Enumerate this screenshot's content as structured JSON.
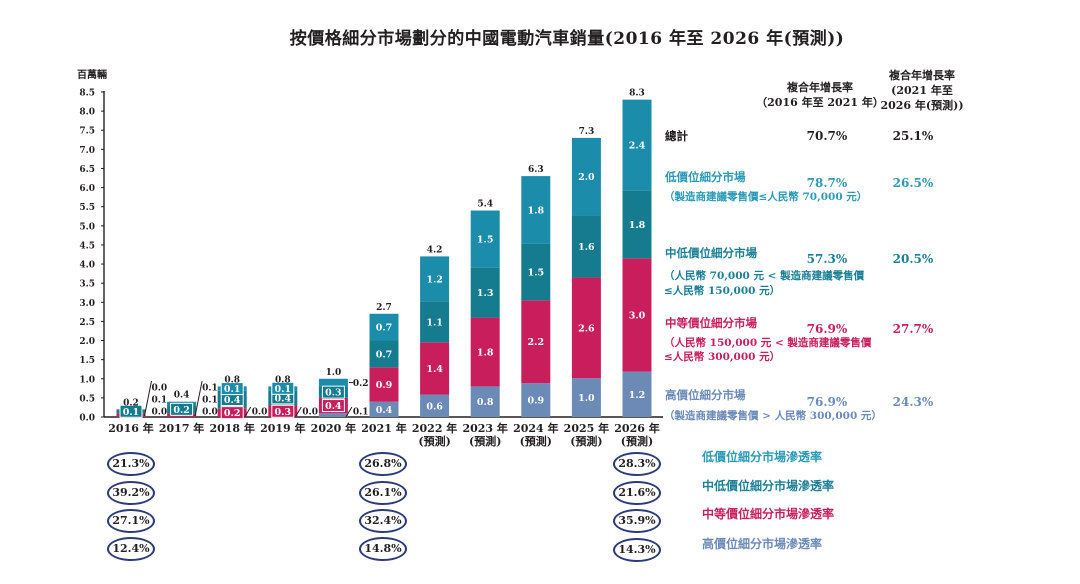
{
  "chart_data": {
    "type": "bar",
    "stacked": true,
    "title": "按價格細分市場劃分的中國電動汽車銷量(2016 年至 2026 年(預測))",
    "xlabel": "",
    "ylabel": "百萬輛",
    "ylim": [
      0,
      8.5
    ],
    "grid": false,
    "yticks": [
      0,
      0.5,
      1,
      1.5,
      2,
      2.5,
      3,
      3.5,
      4,
      4.5,
      5,
      5.5,
      6,
      6.5,
      7,
      7.5,
      8,
      8.5
    ],
    "ytick_labels": [
      "0.0",
      "0.5",
      "1.0",
      "1.5",
      "2.0",
      "2.5",
      "3.0",
      "3.5",
      "4.0",
      "4.5",
      "5.0",
      "5.5",
      "6.0",
      "6.5",
      "7.0",
      "7.5",
      "8.0",
      "8.5"
    ],
    "categories": [
      "2016 年",
      "2017 年",
      "2018 年",
      "2019 年",
      "2020 年",
      "2021 年",
      "2022 年(預測)",
      "2023 年(預測)",
      "2024 年(預測)",
      "2025 年(預測)",
      "2026 年(預測)"
    ],
    "category_lines": [
      [
        "2016 年"
      ],
      [
        "2017 年"
      ],
      [
        "2018 年"
      ],
      [
        "2019 年"
      ],
      [
        "2020 年"
      ],
      [
        "2021 年"
      ],
      [
        "2022 年",
        "(預測)"
      ],
      [
        "2023 年",
        "(預測)"
      ],
      [
        "2024 年",
        "(預測)"
      ],
      [
        "2025 年",
        "(預測)"
      ],
      [
        "2026 年",
        "(預測)"
      ]
    ],
    "series": [
      {
        "name": "高價位細分市場",
        "color": "#6b8ab5",
        "values": [
          0.0,
          0.0,
          0.0,
          0.0,
          0.1,
          0.4,
          0.6,
          0.8,
          0.9,
          1.0,
          1.2
        ],
        "labels": [
          "0.0",
          "0.0",
          "0.0",
          "0.0",
          "0.1",
          "0.4",
          "0.6",
          "0.8",
          "0.9",
          "1.0",
          "1.2"
        ],
        "label_placement": [
          "callout",
          "callout",
          "callout",
          "callout",
          "callout",
          "inside",
          "inside",
          "inside",
          "inside",
          "inside",
          "inside"
        ]
      },
      {
        "name": "中等價位細分市場",
        "color": "#c81f5c",
        "values": [
          0.1,
          0.1,
          0.2,
          0.3,
          0.4,
          0.9,
          1.4,
          1.8,
          2.2,
          2.6,
          3.0
        ],
        "labels": [
          "0.1",
          "0.1",
          "0.2",
          "0.3",
          "0.4",
          "0.9",
          "1.4",
          "1.8",
          "2.2",
          "2.6",
          "3.0"
        ],
        "label_placement": [
          "callout",
          "callout",
          "inside",
          "inside",
          "inside",
          "inside",
          "inside",
          "inside",
          "inside",
          "inside",
          "inside"
        ]
      },
      {
        "name": "中低價位細分市場",
        "color": "#157c90",
        "values": [
          0.1,
          0.2,
          0.4,
          0.4,
          0.3,
          0.7,
          1.1,
          1.3,
          1.5,
          1.6,
          1.8
        ],
        "labels": [
          "0.1",
          "0.2",
          "0.4",
          "0.4",
          "0.3",
          "0.7",
          "1.1",
          "1.3",
          "1.5",
          "1.6",
          "1.8"
        ],
        "label_placement": [
          "inside",
          "inside",
          "inside",
          "inside",
          "inside",
          "inside",
          "inside",
          "inside",
          "inside",
          "inside",
          "inside"
        ]
      },
      {
        "name": "低價位細分市場",
        "color": "#1b8ca9",
        "values": [
          0.0,
          0.1,
          0.1,
          0.1,
          0.2,
          0.7,
          1.2,
          1.5,
          1.8,
          2.0,
          2.4
        ],
        "labels": [
          "0.0",
          "0.1",
          "0.1",
          "0.1",
          "0.2",
          "0.7",
          "1.2",
          "1.5",
          "1.8",
          "2.0",
          "2.4"
        ],
        "label_placement": [
          "callout",
          "callout",
          "inside",
          "inside",
          "callout",
          "inside",
          "inside",
          "inside",
          "inside",
          "inside",
          "inside"
        ]
      }
    ],
    "totals": [
      0.2,
      0.4,
      0.8,
      0.8,
      1.0,
      2.7,
      4.2,
      5.4,
      6.3,
      7.3,
      8.3
    ],
    "total_labels": [
      "0.2",
      "0.4",
      "0.8",
      "0.8",
      "1.0",
      "2.7",
      "4.2",
      "5.4",
      "6.3",
      "7.3",
      "8.3"
    ]
  },
  "cagr": {
    "header_1": [
      "複合年增長率",
      "（2016 年至 2021 年）"
    ],
    "header_2": [
      "複合年增長率",
      "(2021 年至",
      "2026 年(預測))"
    ],
    "rows": [
      {
        "label": "總計",
        "sub": [],
        "cagr_2016_2021": "70.7%",
        "cagr_2021_2026": "25.1%"
      },
      {
        "label": "低價位細分市場",
        "sub": [
          "（製造商建議零售價≤人民幣 70,000 元）"
        ],
        "cagr_2016_2021": "78.7%",
        "cagr_2021_2026": "26.5%"
      },
      {
        "label": "中低價位細分市場",
        "sub": [
          "（人民幣 70,000 元 < 製造商建議零售價",
          "≤人民幣 150,000 元）"
        ],
        "cagr_2016_2021": "57.3%",
        "cagr_2021_2026": "20.5%"
      },
      {
        "label": "中等價位細分市場",
        "sub": [
          "（人民幣 150,000 元 < 製造商建議零售價",
          "≤人民幣 300,000 元）"
        ],
        "cagr_2016_2021": "76.9%",
        "cagr_2021_2026": "27.7%"
      },
      {
        "label": "高價位細分市場",
        "sub": [
          "（製造商建議零售價 > 人民幣 300,000 元）"
        ],
        "cagr_2016_2021": "76.9%",
        "cagr_2021_2026": "24.3%"
      }
    ]
  },
  "penetration": {
    "columns": [
      [
        "21.3%",
        "39.2%",
        "27.1%",
        "12.4%"
      ],
      [
        "26.8%",
        "26.1%",
        "32.4%",
        "14.8%"
      ],
      [
        "28.3%",
        "21.6%",
        "35.9%",
        "14.3%"
      ]
    ],
    "legend": [
      "低價位細分市場滲透率",
      "中低價位細分市場滲透率",
      "中等價位細分市場滲透率",
      "高價位細分市場滲透率"
    ]
  }
}
